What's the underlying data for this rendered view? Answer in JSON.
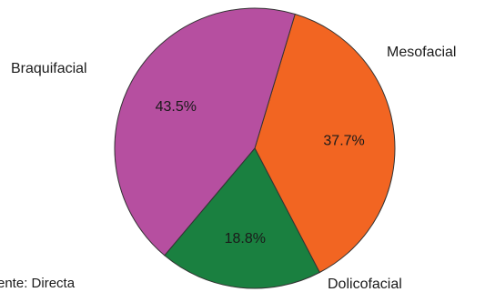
{
  "chart_data": {
    "type": "pie",
    "slices": [
      {
        "label": "Mesofacial",
        "value": 37.7,
        "value_label": "37.7%",
        "color": "#f26522"
      },
      {
        "label": "Dolicofacial",
        "value": 18.8,
        "value_label": "18.8%",
        "color": "#1a8040"
      },
      {
        "label": "Braquifacial",
        "value": 43.5,
        "value_label": "43.5%",
        "color": "#b64fa0"
      }
    ],
    "start_angle_deg": 16.7,
    "direction": "clockwise",
    "slice_outline_color": "#333333",
    "source_note": "ente: Directa"
  }
}
